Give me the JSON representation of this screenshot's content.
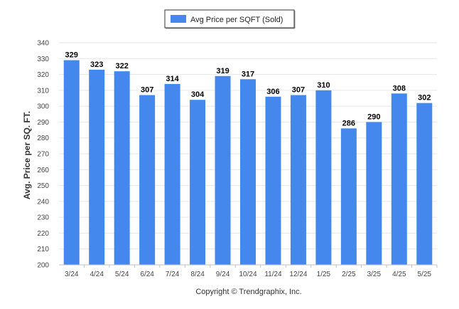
{
  "chart_data": {
    "type": "bar",
    "categories": [
      "3/24",
      "4/24",
      "5/24",
      "6/24",
      "7/24",
      "8/24",
      "9/24",
      "10/24",
      "11/24",
      "12/24",
      "1/25",
      "2/25",
      "3/25",
      "4/25",
      "5/25"
    ],
    "series": [
      {
        "name": "Avg Price per SQFT (Sold)",
        "values": [
          329,
          323,
          322,
          307,
          314,
          304,
          319,
          317,
          306,
          307,
          310,
          286,
          290,
          308,
          302
        ]
      }
    ],
    "title": "",
    "xlabel": "",
    "ylabel": "Avg. Price per SQ. FT.",
    "ylim": [
      200,
      340
    ],
    "ytick_step": 10,
    "grid": true,
    "legend_position": "top-center",
    "colors": {
      "bar": "#4488ee",
      "grid": "#e6e6e6",
      "axis": "#c0c0c0"
    },
    "data_labels": true
  },
  "footer": {
    "copyright": "Copyright © Trendgraphix, Inc."
  }
}
